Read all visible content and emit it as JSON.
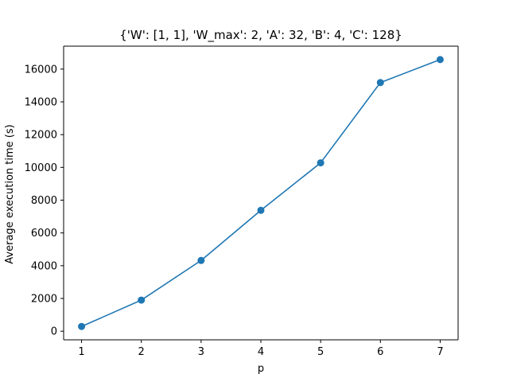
{
  "chart_data": {
    "type": "line",
    "title": "{'W': [1, 1], 'W_max': 2, 'A': 32, 'B': 4, 'C': 128}",
    "xlabel": "p",
    "ylabel": "Average execution time (s)",
    "x": [
      1,
      2,
      3,
      4,
      5,
      6,
      7
    ],
    "series": [
      {
        "values": [
          290,
          1900,
          4320,
          7380,
          10280,
          15180,
          16580
        ],
        "color": "#1f77b4",
        "marker": "circle"
      }
    ],
    "xticks": [
      1,
      2,
      3,
      4,
      5,
      6,
      7
    ],
    "yticks": [
      0,
      2000,
      4000,
      6000,
      8000,
      10000,
      12000,
      14000,
      16000
    ],
    "xlim": [
      0.7,
      7.3
    ],
    "ylim": [
      -525,
      17400
    ],
    "grid": false,
    "legend": "none"
  }
}
